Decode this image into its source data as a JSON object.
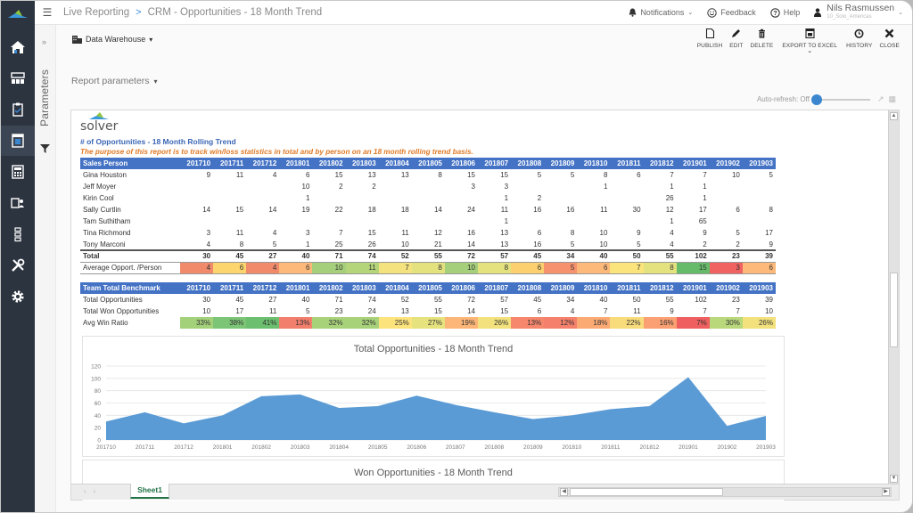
{
  "topbar": {
    "breadcrumb": [
      "Live Reporting",
      "CRM - Opportunities - 18 Month Trend"
    ],
    "breadcrumb_sep": ">",
    "notifications": "Notifications",
    "feedback": "Feedback",
    "help": "Help",
    "user_name": "Nils Rasmussen",
    "user_sub": "10_Solo_Americas"
  },
  "sidebar": {
    "items": [
      {
        "icon": "home-icon"
      },
      {
        "icon": "modules-icon"
      },
      {
        "icon": "clipboard-icon"
      },
      {
        "icon": "report-icon",
        "active": true
      },
      {
        "icon": "calculator-icon"
      },
      {
        "icon": "forms-icon"
      },
      {
        "icon": "hierarchy-icon"
      },
      {
        "icon": "tools-icon"
      },
      {
        "icon": "settings-icon"
      }
    ]
  },
  "params": {
    "label": "Parameters",
    "collapse": "»"
  },
  "main": {
    "data_source": "Data Warehouse",
    "report_parameters": "Report parameters",
    "auto_refresh": "Auto-refresh: Off",
    "toolbar": [
      {
        "label": "PUBLISH",
        "icon": "publish-icon"
      },
      {
        "label": "EDIT",
        "icon": "edit-icon"
      },
      {
        "label": "DELETE",
        "icon": "delete-icon"
      },
      {
        "label": "EXPORT TO EXCEL",
        "icon": "export-excel-icon"
      },
      {
        "label": "HISTORY",
        "icon": "history-icon"
      },
      {
        "label": "CLOSE",
        "icon": "close-icon"
      }
    ]
  },
  "report": {
    "logo_text": "solver",
    "title": "# of Opportunities - 18 Month Rolling Trend",
    "purpose": "The purpose of this report is to track win/loss statistics in total and by person on an 18 month rolling trend basis.",
    "periods": [
      "201710",
      "201711",
      "201712",
      "201801",
      "201802",
      "201803",
      "201804",
      "201805",
      "201806",
      "201807",
      "201808",
      "201809",
      "201810",
      "201811",
      "201812",
      "201901",
      "201902",
      "201903"
    ],
    "sales_header": "Sales Person",
    "sales_rows": [
      {
        "name": "Gina Houston",
        "values": [
          "9",
          "11",
          "4",
          "6",
          "15",
          "13",
          "13",
          "8",
          "15",
          "15",
          "5",
          "5",
          "8",
          "6",
          "7",
          "7",
          "10",
          "5"
        ]
      },
      {
        "name": "Jeff Moyer",
        "values": [
          "",
          "",
          "",
          "10",
          "2",
          "2",
          "",
          "",
          "3",
          "3",
          "",
          "",
          "1",
          "",
          "1",
          "1",
          "",
          ""
        ]
      },
      {
        "name": "Kirin Cool",
        "values": [
          "",
          "",
          "",
          "1",
          "",
          "",
          "",
          "",
          "",
          "1",
          "2",
          "",
          "",
          "",
          "26",
          "1",
          "",
          ""
        ]
      },
      {
        "name": "Sally Curtlin",
        "values": [
          "14",
          "15",
          "14",
          "19",
          "22",
          "18",
          "18",
          "14",
          "24",
          "11",
          "16",
          "16",
          "11",
          "30",
          "12",
          "17",
          "6",
          "8"
        ]
      },
      {
        "name": "Tam Suthitham",
        "values": [
          "",
          "",
          "",
          "",
          "",
          "",
          "",
          "",
          "",
          "1",
          "",
          "",
          "",
          "",
          "1",
          "65",
          "",
          ""
        ]
      },
      {
        "name": "Tina Richmond",
        "values": [
          "3",
          "11",
          "4",
          "3",
          "7",
          "15",
          "11",
          "12",
          "16",
          "13",
          "6",
          "8",
          "10",
          "9",
          "4",
          "9",
          "5",
          "17"
        ]
      },
      {
        "name": "Tony Marconi",
        "values": [
          "4",
          "8",
          "5",
          "1",
          "25",
          "26",
          "10",
          "21",
          "14",
          "13",
          "16",
          "5",
          "10",
          "5",
          "4",
          "2",
          "2",
          "9"
        ]
      }
    ],
    "total": {
      "label": "Total",
      "values": [
        "30",
        "45",
        "27",
        "40",
        "71",
        "74",
        "52",
        "55",
        "72",
        "57",
        "45",
        "34",
        "40",
        "50",
        "55",
        "102",
        "23",
        "39"
      ]
    },
    "avg": {
      "label": "Average Opport. /Person",
      "values": [
        "4",
        "6",
        "4",
        "6",
        "10",
        "11",
        "7",
        "8",
        "10",
        "8",
        "6",
        "5",
        "6",
        "7",
        "8",
        "15",
        "3",
        "6"
      ],
      "colors": [
        "#f08a6a",
        "#fdd56e",
        "#f08a6a",
        "#fdb979",
        "#a5cf7a",
        "#b4d57a",
        "#f3e27d",
        "#e3e27f",
        "#a5cf7a",
        "#e3e27f",
        "#fdd06f",
        "#f6926d",
        "#fdb979",
        "#fae47b",
        "#e3e27f",
        "#66bb6a",
        "#f06262",
        "#fdb979"
      ]
    },
    "bench_header": "Team Total Benchmark",
    "bench_rows": [
      {
        "name": "Total Opportunities",
        "values": [
          "30",
          "45",
          "27",
          "40",
          "71",
          "74",
          "52",
          "55",
          "72",
          "57",
          "45",
          "34",
          "40",
          "50",
          "55",
          "102",
          "23",
          "39"
        ]
      },
      {
        "name": "Total Won Opportunities",
        "values": [
          "10",
          "17",
          "11",
          "5",
          "23",
          "24",
          "13",
          "15",
          "14",
          "15",
          "6",
          "4",
          "7",
          "11",
          "9",
          "7",
          "7",
          "10"
        ]
      }
    ],
    "win_ratio": {
      "label": "Avg Win Ratio",
      "values": [
        "33%",
        "38%",
        "41%",
        "13%",
        "32%",
        "32%",
        "25%",
        "27%",
        "19%",
        "26%",
        "13%",
        "12%",
        "18%",
        "22%",
        "16%",
        "7%",
        "30%",
        "26%"
      ],
      "colors": [
        "#a3d17a",
        "#7cc576",
        "#6bbf6e",
        "#f27e6c",
        "#a8d27a",
        "#a8d27a",
        "#fde37c",
        "#e6e27e",
        "#fdb677",
        "#f3e17d",
        "#f6866c",
        "#f5806b",
        "#fcaa74",
        "#f8dc7b",
        "#fba072",
        "#ef5f5f",
        "#b9d87b",
        "#f3e17d"
      ]
    }
  },
  "chart_data": {
    "type": "area",
    "title": "Total Opportunities - 18 Month Trend",
    "categories": [
      "201710",
      "201711",
      "201712",
      "201801",
      "201802",
      "201803",
      "201804",
      "201805",
      "201806",
      "201807",
      "201808",
      "201809",
      "201810",
      "201811",
      "201812",
      "201901",
      "201902",
      "201903"
    ],
    "values": [
      30,
      45,
      27,
      40,
      71,
      74,
      52,
      55,
      72,
      57,
      45,
      34,
      40,
      50,
      55,
      102,
      23,
      39
    ],
    "yticks": [
      0,
      20,
      40,
      60,
      80,
      100,
      120
    ],
    "ylim": [
      0,
      120
    ],
    "xlabel": "",
    "ylabel": "",
    "grid": true,
    "color": "#5b9bd5"
  },
  "chart2": {
    "title": "Won Opportunities - 18 Month Trend"
  },
  "footer": {
    "sheet_tab": "Sheet1"
  }
}
